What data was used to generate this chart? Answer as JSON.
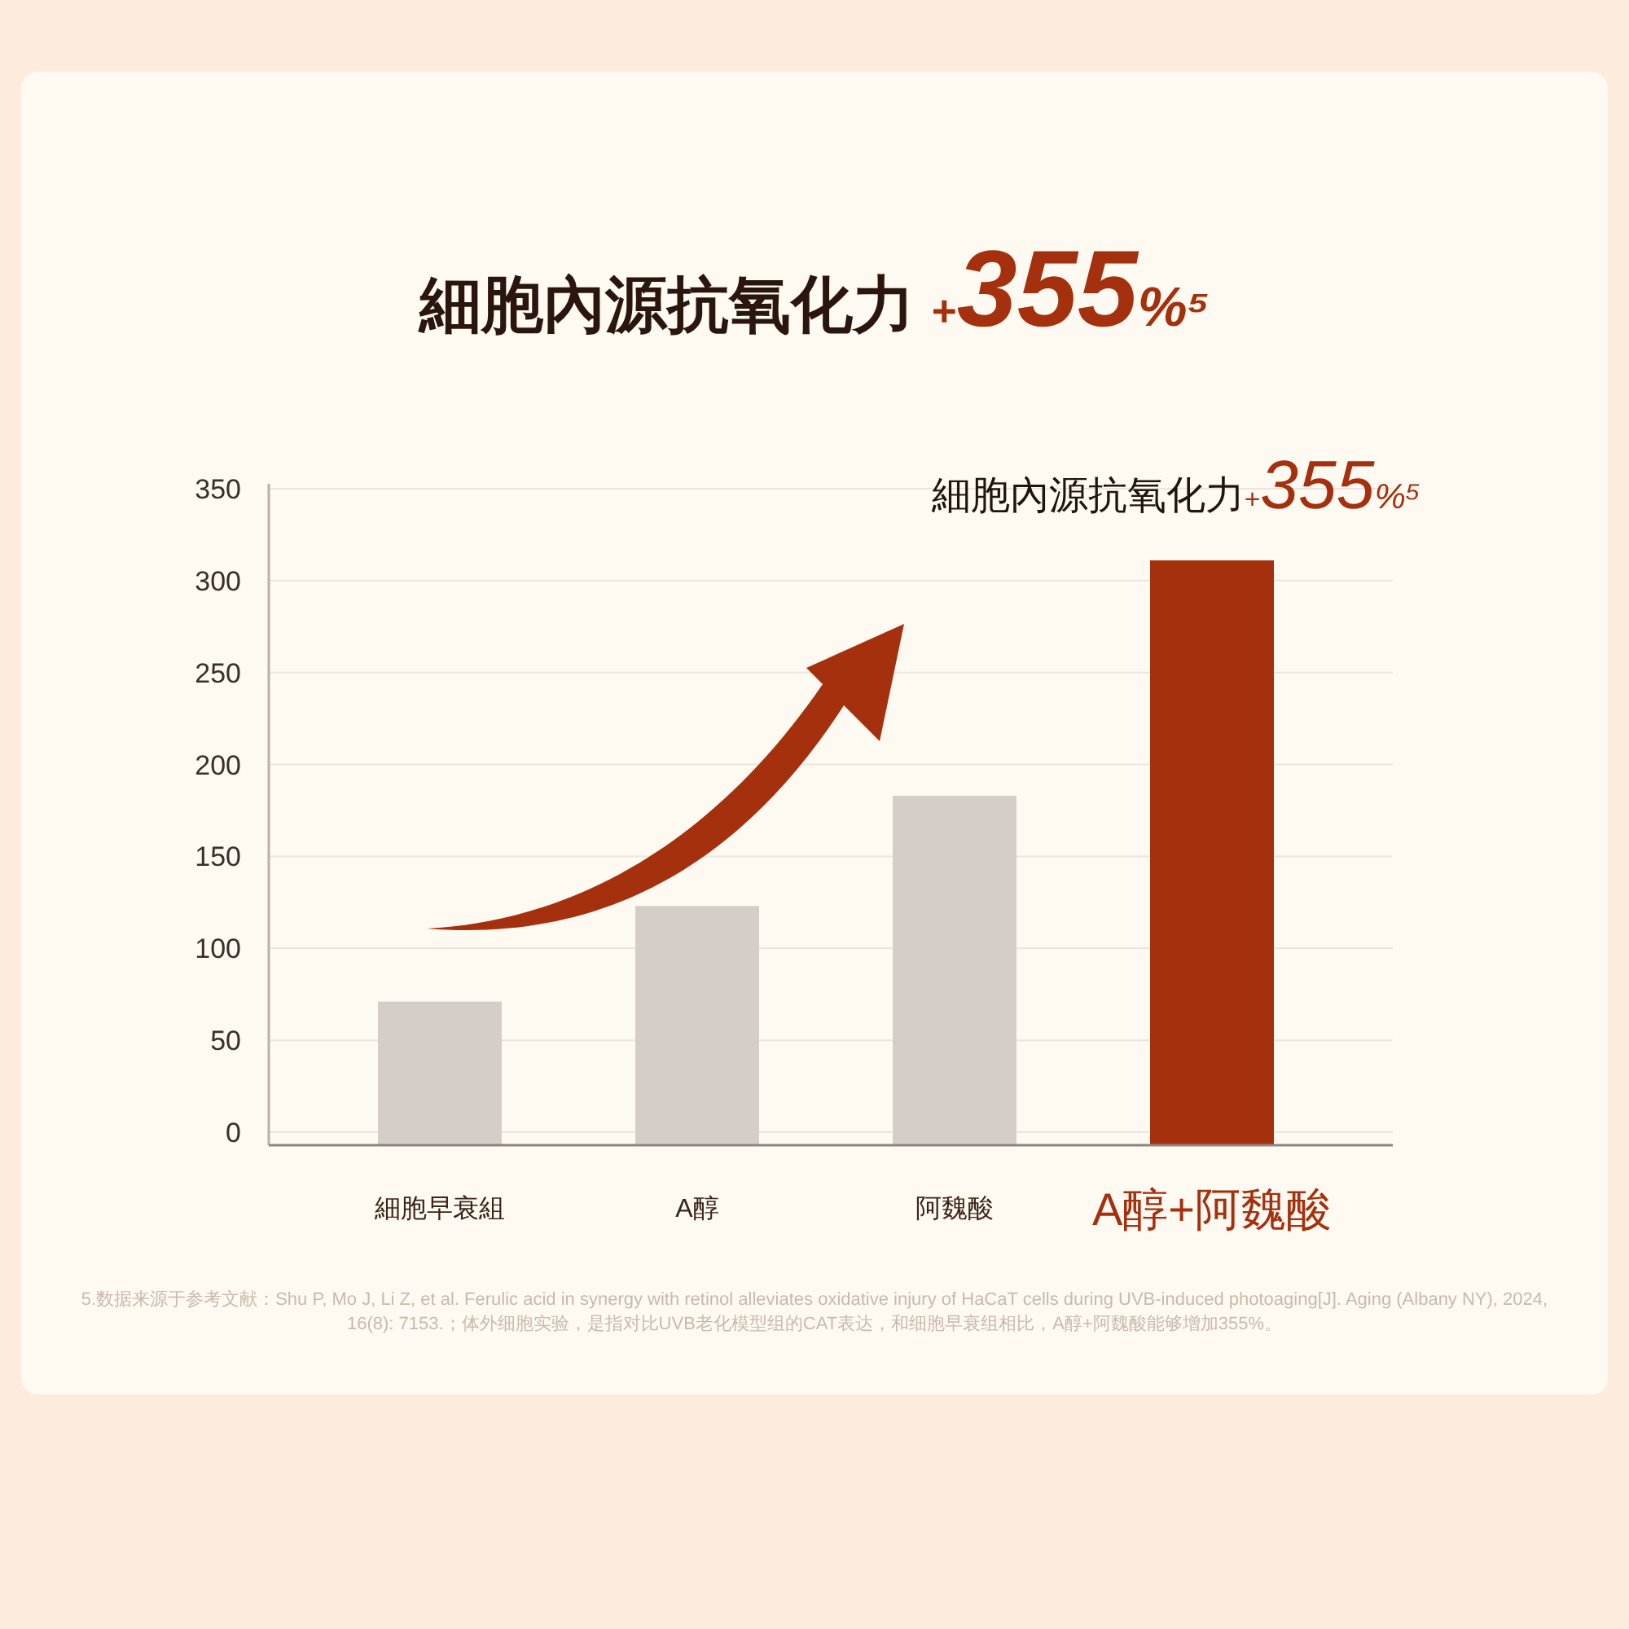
{
  "chart_data": {
    "type": "bar",
    "title": "細胞內源抗氧化力 +355%⁵",
    "categories": [
      "細胞早衰組",
      "A醇",
      "阿魏酸",
      "A醇+阿魏酸"
    ],
    "values": [
      71,
      123,
      183,
      311
    ],
    "colors": [
      "#d5cdc7",
      "#d5cdc7",
      "#d5cdc7",
      "#a5300e"
    ],
    "ylim": [
      0,
      350
    ],
    "yticks": [
      0,
      50,
      100,
      150,
      200,
      250,
      300,
      350
    ],
    "grid": "y",
    "annotations": [
      {
        "text": "細胞內源抗氧化力+355%⁵",
        "x": "A醇+阿魏酸",
        "y": 311
      },
      "5.数据来源于参考文献：Shu P, Mo J, Li Z, et al. Ferulic acid in synergy with retinol alleviates oxidative injury of HaCaT cells during UVB-induced photoaging[J]. Aging (Albany NY), 2024, 16(8): 7153.；体外细胞实验，是指对比UVB老化模型组的CAT表达，和细胞早衰组相比，A醇+阿魏酸能够增加355%。"
    ]
  }
}
